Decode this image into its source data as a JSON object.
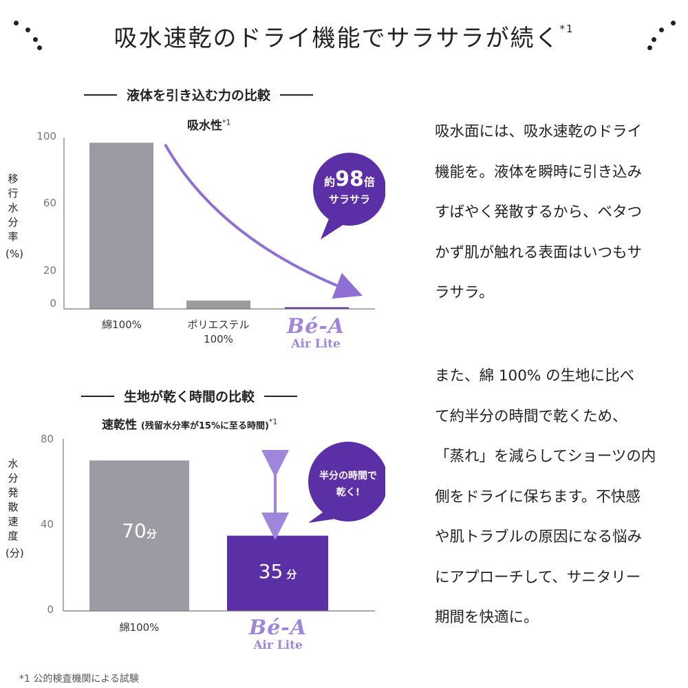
{
  "header": {
    "title": "吸水速乾のドライ機能でサラサラが続く",
    "title_note": "*1"
  },
  "chart1": {
    "section_heading": "液体を引き込む力の比較",
    "title": "吸水性",
    "title_note": "*1",
    "ylabel": [
      "移",
      "行",
      "水",
      "分",
      "率",
      "(%)"
    ],
    "ticks": [
      "100",
      "60",
      "20",
      "0"
    ],
    "logo_main": "Bé-A",
    "logo_sub": "Air Lite",
    "bubble_line1_prefix": "約",
    "bubble_number": "98",
    "bubble_line1_suffix": "倍",
    "bubble_line2": "サラサラ"
  },
  "chart2": {
    "section_heading": "生地が乾く時間の比較",
    "title": "速乾性",
    "title_paren": "(残留水分率が15%に至る時間)",
    "title_note": "*1",
    "ylabel": [
      "水",
      "分",
      "発",
      "散",
      "速",
      "度",
      "(分)"
    ],
    "ticks": [
      "80",
      "40",
      "0"
    ],
    "logo_main": "Bé-A",
    "logo_sub": "Air Lite",
    "bar_label_1_num": "70",
    "bar_label_1_unit": "分",
    "bar_label_2_num": "35",
    "bar_label_2_unit": "分",
    "bubble_line1": "半分の時間で",
    "bubble_line2": "乾く!"
  },
  "chart_data": [
    {
      "type": "bar",
      "title": "吸水性",
      "ylabel": "移行水分率(%)",
      "categories": [
        "綿100%",
        "ポリエステル100%",
        "Bé-A Air Lite"
      ],
      "values": [
        99,
        5,
        1
      ],
      "ylim": [
        0,
        100
      ],
      "yticks": [
        100,
        60,
        20,
        0
      ],
      "colors": [
        "#9c9aa2",
        "#9c9c9c",
        "#5b2fa6"
      ],
      "annotation": "約98倍 サラサラ",
      "grid": false
    },
    {
      "type": "bar",
      "title": "速乾性",
      "ylabel": "水分発散速度(分)",
      "categories": [
        "綿100%",
        "Bé-A Air Lite"
      ],
      "values": [
        70,
        35
      ],
      "ylim": [
        0,
        80
      ],
      "yticks": [
        80,
        40,
        0
      ],
      "colors": [
        "#9c9aa2",
        "#5b2fa6"
      ],
      "annotation": "半分の時間で乾く!",
      "grid": false
    }
  ],
  "paragraph1": [
    "吸水面には、吸水速乾のドライ",
    "機能を。液体を瞬時に引き込み",
    "すばやく発散するから、ベタつ",
    "かず肌が触れる表面はいつもサ",
    "ラサラ。"
  ],
  "paragraph2": [
    "また、綿 100% の生地に比べ",
    "て約半分の時間で乾くため、",
    "「蒸れ」を減らしてショーツの内",
    "側をドライに保ちます。不快感",
    "や肌トラブルの原因になる悩み",
    "にアプローチして、サニタリー",
    "期間を快適に。"
  ],
  "footnote": "*1  公的検査機関による試験",
  "colors": {
    "purple": "#5b2fa6",
    "lavender": "#9f86db",
    "gray_bar": "#9c9aa2",
    "text": "#222222"
  }
}
